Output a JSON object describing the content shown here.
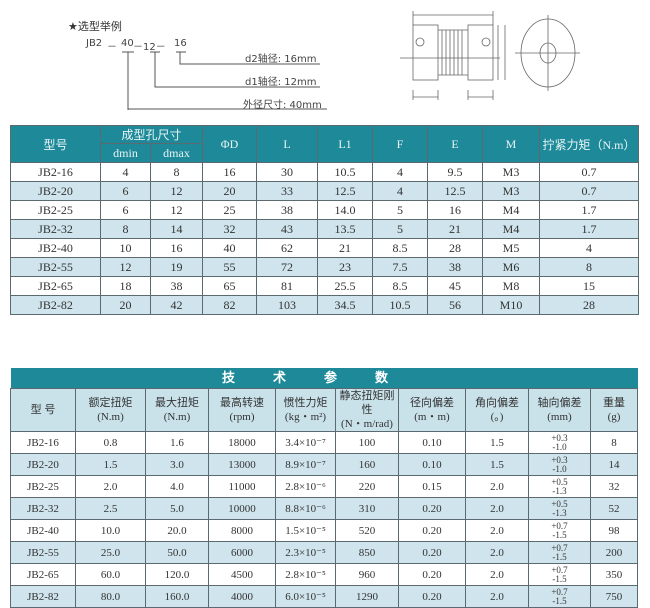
{
  "selection": {
    "title": "★选型举例",
    "code": [
      "JB2",
      "－",
      "40",
      "－12－",
      "16"
    ],
    "notes": [
      "d2轴径:  16mm",
      "d1轴径:  12mm",
      "外径尺寸: 40mm"
    ]
  },
  "table1": {
    "headers": [
      "型号",
      "成型孔尺寸",
      "ΦD",
      "L",
      "L1",
      "F",
      "E",
      "M",
      "拧紧力矩（N.m）"
    ],
    "subheaders": [
      "dmin",
      "dmax"
    ],
    "rows": [
      [
        "JB2-16",
        "4",
        "8",
        "16",
        "30",
        "10.5",
        "4",
        "9.5",
        "M3",
        "0.7"
      ],
      [
        "JB2-20",
        "6",
        "12",
        "20",
        "33",
        "12.5",
        "4",
        "12.5",
        "M3",
        "0.7"
      ],
      [
        "JB2-25",
        "6",
        "12",
        "25",
        "38",
        "14.0",
        "5",
        "16",
        "M4",
        "1.7"
      ],
      [
        "JB2-32",
        "8",
        "14",
        "32",
        "43",
        "13.5",
        "5",
        "21",
        "M4",
        "1.7"
      ],
      [
        "JB2-40",
        "10",
        "16",
        "40",
        "62",
        "21",
        "8.5",
        "28",
        "M5",
        "4"
      ],
      [
        "JB2-55",
        "12",
        "19",
        "55",
        "72",
        "23",
        "7.5",
        "38",
        "M6",
        "8"
      ],
      [
        "JB2-65",
        "18",
        "38",
        "65",
        "81",
        "25.5",
        "8.5",
        "45",
        "M8",
        "15"
      ],
      [
        "JB2-82",
        "20",
        "42",
        "82",
        "103",
        "34.5",
        "10.5",
        "56",
        "M10",
        "28"
      ]
    ]
  },
  "table2": {
    "title": "技术参数",
    "headers": [
      [
        "型 号",
        ""
      ],
      [
        "额定扭矩",
        "(N.m)"
      ],
      [
        "最大扭矩",
        "(N.m)"
      ],
      [
        "最高转速",
        "(rpm)"
      ],
      [
        "惯性力矩",
        "(kg・m²)"
      ],
      [
        "静态扭矩刚性",
        "(N・m/rad)"
      ],
      [
        "径向偏差",
        "(m・m)"
      ],
      [
        "角向偏差",
        "(。)"
      ],
      [
        "轴向偏差",
        "(mm)"
      ],
      [
        "重量",
        "(g)"
      ]
    ],
    "rows": [
      [
        "JB2-16",
        "0.8",
        "1.6",
        "18000",
        "3.4×10⁻⁷",
        "100",
        "0.10",
        "1.5",
        "+0.3",
        "-1.0",
        "8"
      ],
      [
        "JB2-20",
        "1.5",
        "3.0",
        "13000",
        "8.9×10⁻⁷",
        "160",
        "0.10",
        "1.5",
        "+0.3",
        "-1.0",
        "14"
      ],
      [
        "JB2-25",
        "2.0",
        "4.0",
        "11000",
        "2.8×10⁻⁶",
        "220",
        "0.15",
        "2.0",
        "+0.5",
        "-1.3",
        "32"
      ],
      [
        "JB2-32",
        "2.5",
        "5.0",
        "10000",
        "8.8×10⁻⁶",
        "310",
        "0.20",
        "2.0",
        "+0.5",
        "-1.3",
        "52"
      ],
      [
        "JB2-40",
        "10.0",
        "20.0",
        "8000",
        "1.5×10⁻⁵",
        "520",
        "0.20",
        "2.0",
        "+0.7",
        "-1.5",
        "98"
      ],
      [
        "JB2-55",
        "25.0",
        "50.0",
        "6000",
        "2.3×10⁻⁵",
        "850",
        "0.20",
        "2.0",
        "+0.7",
        "-1.5",
        "200"
      ],
      [
        "JB2-65",
        "60.0",
        "120.0",
        "4500",
        "2.8×10⁻⁵",
        "960",
        "0.20",
        "2.0",
        "+0.7",
        "-1.5",
        "350"
      ],
      [
        "JB2-82",
        "80.0",
        "160.0",
        "4000",
        "6.0×10⁻⁵",
        "1290",
        "0.20",
        "2.0",
        "+0.7",
        "-1.5",
        "750"
      ]
    ]
  },
  "colors": {
    "header": "#1e8a99",
    "alt_row": "#cfe4ec"
  }
}
